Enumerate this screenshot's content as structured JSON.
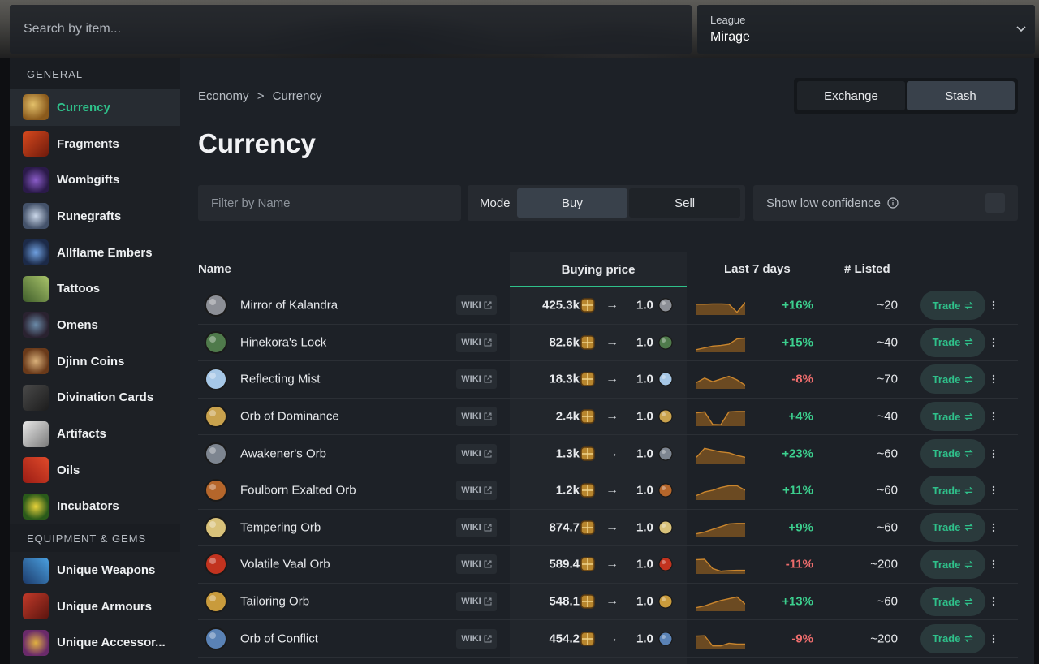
{
  "search": {
    "placeholder": "Search by item..."
  },
  "league": {
    "caption": "League",
    "value": "Mirage"
  },
  "sidebar": {
    "section_general": "GENERAL",
    "section_equipment": "EQUIPMENT & GEMS",
    "general_items": [
      {
        "label": "Currency",
        "icon": "currency-icon",
        "active": true
      },
      {
        "label": "Fragments",
        "icon": "fragments-icon"
      },
      {
        "label": "Wombgifts",
        "icon": "wombgifts-icon"
      },
      {
        "label": "Runegrafts",
        "icon": "runegrafts-icon"
      },
      {
        "label": "Allflame Embers",
        "icon": "allflame-embers-icon"
      },
      {
        "label": "Tattoos",
        "icon": "tattoos-icon"
      },
      {
        "label": "Omens",
        "icon": "omens-icon"
      },
      {
        "label": "Djinn Coins",
        "icon": "djinn-coins-icon"
      },
      {
        "label": "Divination Cards",
        "icon": "divination-cards-icon"
      },
      {
        "label": "Artifacts",
        "icon": "artifacts-icon"
      },
      {
        "label": "Oils",
        "icon": "oils-icon"
      },
      {
        "label": "Incubators",
        "icon": "incubators-icon"
      }
    ],
    "equipment_items": [
      {
        "label": "Unique Weapons",
        "icon": "unique-weapons-icon"
      },
      {
        "label": "Unique Armours",
        "icon": "unique-armours-icon"
      },
      {
        "label": "Unique Accessor...",
        "icon": "unique-accessories-icon"
      }
    ]
  },
  "breadcrumb": {
    "root": "Economy",
    "separator": ">",
    "current": "Currency"
  },
  "view_toggle": {
    "exchange": "Exchange",
    "stash": "Stash",
    "active": "Stash"
  },
  "page_title": "Currency",
  "filter": {
    "placeholder": "Filter by Name"
  },
  "mode": {
    "label": "Mode",
    "buy": "Buy",
    "sell": "Sell",
    "active": "Buy"
  },
  "low_confidence": {
    "label": "Show low confidence",
    "checked": false
  },
  "table": {
    "headers": {
      "name": "Name",
      "buying_price": "Buying price",
      "last_7_days": "Last 7 days",
      "listed": "# Listed"
    },
    "wiki_label": "WIKI",
    "arrow": "→",
    "trade_label": "Trade",
    "rows": [
      {
        "name": "Mirror of Kalandra",
        "price": "425.3k",
        "receive": "1.0",
        "change": "+16%",
        "listed": "~20",
        "trend": [
          0.6,
          0.6,
          0.62,
          0.62,
          0.6,
          0.15,
          0.7
        ],
        "color": "#8c8f96"
      },
      {
        "name": "Hinekora's Lock",
        "price": "82.6k",
        "receive": "1.0",
        "change": "+15%",
        "listed": "~40",
        "trend": [
          0.15,
          0.25,
          0.35,
          0.38,
          0.45,
          0.75,
          0.8
        ],
        "color": "#4f7a4b"
      },
      {
        "name": "Reflecting Mist",
        "price": "18.3k",
        "receive": "1.0",
        "change": "-8%",
        "listed": "~70",
        "trend": [
          0.35,
          0.6,
          0.4,
          0.55,
          0.7,
          0.5,
          0.2
        ],
        "color": "#a6c7e6"
      },
      {
        "name": "Orb of Dominance",
        "price": "2.4k",
        "receive": "1.0",
        "change": "+4%",
        "listed": "~40",
        "trend": [
          0.75,
          0.8,
          0.1,
          0.08,
          0.8,
          0.82,
          0.82
        ],
        "color": "#c9a24d"
      },
      {
        "name": "Awakener's Orb",
        "price": "1.3k",
        "receive": "1.0",
        "change": "+23%",
        "listed": "~60",
        "trend": [
          0.35,
          0.85,
          0.75,
          0.65,
          0.6,
          0.45,
          0.35
        ],
        "color": "#7d8590"
      },
      {
        "name": "Foulborn Exalted Orb",
        "price": "1.2k",
        "receive": "1.0",
        "change": "+11%",
        "listed": "~60",
        "trend": [
          0.25,
          0.45,
          0.55,
          0.7,
          0.8,
          0.8,
          0.55
        ],
        "color": "#b5662b"
      },
      {
        "name": "Tempering Orb",
        "price": "874.7",
        "receive": "1.0",
        "change": "+9%",
        "listed": "~60",
        "trend": [
          0.2,
          0.3,
          0.45,
          0.6,
          0.75,
          0.78,
          0.78
        ],
        "color": "#d9c27a"
      },
      {
        "name": "Volatile Vaal Orb",
        "price": "589.4",
        "receive": "1.0",
        "change": "-11%",
        "listed": "~200",
        "trend": [
          0.8,
          0.82,
          0.3,
          0.15,
          0.18,
          0.2,
          0.2
        ],
        "color": "#c2331f"
      },
      {
        "name": "Tailoring Orb",
        "price": "548.1",
        "receive": "1.0",
        "change": "+13%",
        "listed": "~60",
        "trend": [
          0.2,
          0.3,
          0.45,
          0.6,
          0.7,
          0.8,
          0.4
        ],
        "color": "#c99b3c"
      },
      {
        "name": "Orb of Conflict",
        "price": "454.2",
        "receive": "1.0",
        "change": "-9%",
        "listed": "~200",
        "trend": [
          0.7,
          0.72,
          0.15,
          0.15,
          0.3,
          0.25,
          0.25
        ],
        "color": "#5a82b5"
      }
    ]
  },
  "colors": {
    "accent": "#2fc08a",
    "positive": "#3ccf8e",
    "negative": "#ef6d6d",
    "spark_fill": "#6b4a22",
    "spark_line": "#c9852d"
  }
}
